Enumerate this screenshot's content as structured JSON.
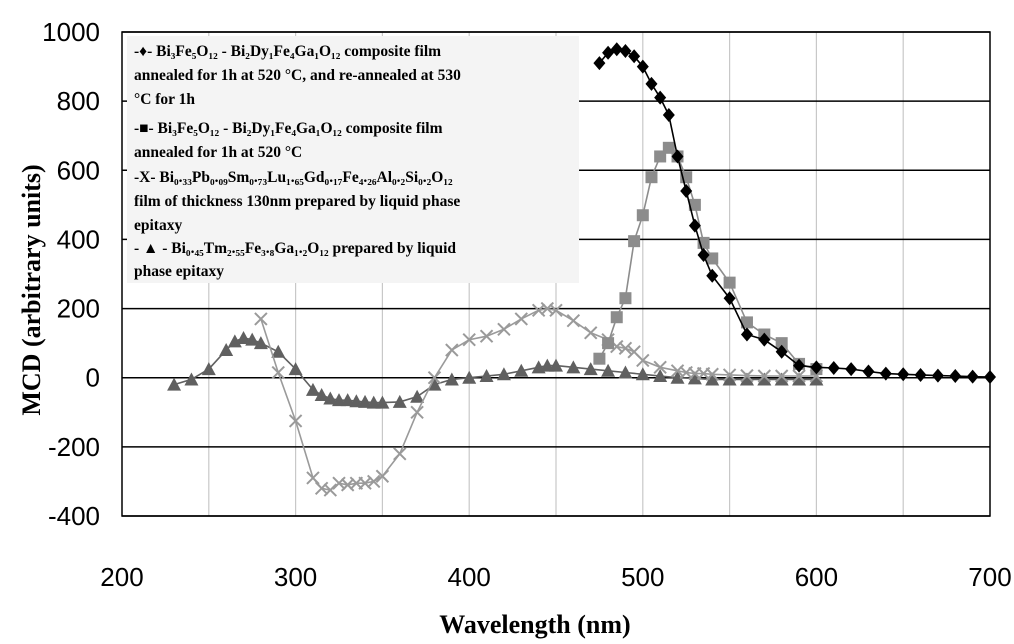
{
  "chart_data": {
    "type": "line",
    "xlabel": "Wavelength (nm)",
    "ylabel": "MCD (arbitrary units)",
    "xlim": [
      200,
      700
    ],
    "ylim": [
      -400,
      1000
    ],
    "x_ticks": [
      "200",
      "300",
      "400",
      "500",
      "600",
      "700"
    ],
    "y_ticks": [
      "-400",
      "-200",
      "0",
      "200",
      "400",
      "600",
      "800",
      "1000"
    ],
    "grid": "both",
    "legend_position": "top-left",
    "legend_lines": [
      [
        "-♦- ",
        "Bi₃Fe₅O₁₂ - Bi₂Dy₁Fe₄Ga₁O₁₂ composite film"
      ],
      [
        "",
        "annealed for 1h at 520 °C, and re-annealed at 530"
      ],
      [
        "",
        "°C for 1h"
      ],
      [
        "-■- ",
        "Bi₃Fe₅O₁₂ - Bi₂Dy₁Fe₄Ga₁O₁₂ composite film"
      ],
      [
        "",
        "annealed for 1h at 520 °C"
      ],
      [
        "-X- ",
        "Bi₀.₃₃Pb₀.₀₉Sm₀.₇₃Lu₁.₆₅Gd₀.₁₇Fe₄.₂₆Al₀.₂Si₀.₂O₁₂"
      ],
      [
        "",
        "film of thickness 130nm prepared by liquid phase"
      ],
      [
        "",
        "epitaxy"
      ],
      [
        "- ▲ - ",
        "Bi₀.₄₅Tm₂.₅₅Fe₃.₈Ga₁.₂O₁₂ prepared by liquid"
      ],
      [
        "",
        "phase epitaxy"
      ]
    ],
    "series": [
      {
        "name": "Bi₃Fe₅O₁₂ - Bi₂Dy₁Fe₄Ga₁O₁₂ composite film annealed for 1h at 520 °C, and re-annealed at 530 °C for 1h",
        "marker": "diamond",
        "color": "#000000",
        "x": [
          475,
          480,
          485,
          490,
          495,
          500,
          505,
          510,
          515,
          520,
          525,
          530,
          535,
          540,
          550,
          560,
          570,
          580,
          590,
          600,
          610,
          620,
          630,
          640,
          650,
          660,
          670,
          680,
          690,
          700
        ],
        "values": [
          910,
          940,
          950,
          945,
          930,
          900,
          850,
          810,
          760,
          640,
          540,
          440,
          355,
          295,
          230,
          125,
          110,
          75,
          35,
          30,
          28,
          25,
          18,
          12,
          10,
          8,
          6,
          5,
          3,
          2
        ]
      },
      {
        "name": "Bi₃Fe₅O₁₂ - Bi₂Dy₁Fe₄Ga₁O₁₂ composite film annealed for 1h at 520 °C",
        "marker": "square",
        "color": "#8c8c8c",
        "x": [
          475,
          480,
          485,
          490,
          495,
          500,
          505,
          510,
          515,
          520,
          525,
          530,
          535,
          540,
          550,
          560,
          570,
          580,
          590,
          600
        ],
        "values": [
          55,
          100,
          175,
          230,
          395,
          470,
          580,
          640,
          665,
          640,
          580,
          500,
          390,
          345,
          275,
          160,
          125,
          100,
          40,
          25
        ]
      },
      {
        "name": "Bi₀.₃₃Pb₀.₀₉Sm₀.₇₃Lu₁.₆₅Gd₀.₁₇Fe₄.₂₆Al₀.₂Si₀.₂O₁₂ film of thickness 130nm prepared by liquid phase epitaxy",
        "marker": "x",
        "color": "#9a9a9a",
        "x": [
          280,
          290,
          300,
          310,
          315,
          320,
          325,
          330,
          335,
          340,
          345,
          350,
          360,
          370,
          380,
          390,
          400,
          410,
          420,
          430,
          440,
          445,
          450,
          460,
          470,
          480,
          485,
          490,
          495,
          500,
          510,
          520,
          525,
          530,
          535,
          540,
          550,
          560,
          570,
          580,
          590,
          600
        ],
        "values": [
          170,
          15,
          -125,
          -290,
          -320,
          -325,
          -305,
          -310,
          -305,
          -305,
          -300,
          -285,
          -220,
          -100,
          0,
          80,
          110,
          120,
          140,
          170,
          195,
          200,
          195,
          165,
          130,
          110,
          90,
          85,
          75,
          50,
          30,
          20,
          15,
          12,
          12,
          10,
          8,
          6,
          5,
          5,
          5,
          5
        ]
      },
      {
        "name": "Bi₀.₄₅Tm₂.₅₅Fe₃.₈Ga₁.₂O₁₂ prepared by liquid phase epitaxy",
        "marker": "triangle",
        "color": "#606060",
        "x": [
          230,
          240,
          250,
          260,
          265,
          270,
          275,
          280,
          290,
          300,
          310,
          315,
          320,
          325,
          330,
          335,
          340,
          345,
          350,
          360,
          370,
          380,
          390,
          400,
          410,
          420,
          430,
          440,
          445,
          450,
          460,
          470,
          480,
          490,
          500,
          510,
          520,
          530,
          540,
          550,
          560,
          570,
          580,
          590,
          600
        ],
        "values": [
          -20,
          -5,
          25,
          80,
          105,
          115,
          110,
          100,
          75,
          25,
          -35,
          -50,
          -60,
          -65,
          -65,
          -68,
          -70,
          -72,
          -72,
          -70,
          -55,
          -20,
          -5,
          0,
          5,
          10,
          20,
          30,
          35,
          35,
          30,
          25,
          20,
          15,
          10,
          5,
          0,
          -2,
          -5,
          -5,
          -5,
          -5,
          -5,
          -5,
          -5
        ]
      }
    ]
  }
}
